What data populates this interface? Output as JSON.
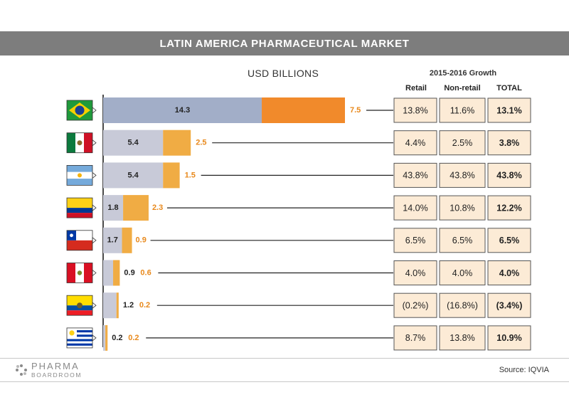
{
  "header": {
    "title": "LATIN AMERICA PHARMACEUTICAL MARKET"
  },
  "subtitle": "USD BILLIONS",
  "growth": {
    "title": "2015-2016 Growth",
    "columns": {
      "retail": "Retail",
      "nonretail": "Non-retail",
      "total": "TOTAL"
    }
  },
  "footer": {
    "logo_line1": "PHARMA",
    "logo_line2": "BOARDROOM",
    "source": "Source: IQVIA"
  },
  "colors": {
    "retail_highlight": "#a2aec8",
    "nonretail_highlight": "#f18a2b",
    "retail": "#c8cad8",
    "nonretail": "#f0ac44",
    "cell_bg": "#fcebd6",
    "label_dark": "#222222",
    "label_orange": "#e8891c"
  },
  "chart_data": {
    "type": "bar",
    "stacked": true,
    "orientation": "horizontal",
    "unit": "USD BILLIONS",
    "categories": [
      "brazil-flag-icon",
      "mexico-flag-icon",
      "argentina-flag-icon",
      "colombia-flag-icon",
      "chile-flag-icon",
      "peru-flag-icon",
      "ecuador-flag-icon",
      "uruguay-flag-icon"
    ],
    "series": [
      {
        "values": [
          14.3,
          5.4,
          5.4,
          1.8,
          1.7,
          0.9,
          1.2,
          0.2
        ]
      },
      {
        "values": [
          7.5,
          2.5,
          1.5,
          2.3,
          0.9,
          0.6,
          0.2,
          0.2
        ]
      }
    ],
    "value_labels": [
      [
        "14.3",
        "5.4",
        "5.4",
        "1.8",
        "1.7",
        "0.9",
        "1.2",
        "0.2"
      ],
      [
        "7.5",
        "2.5",
        "1.5",
        "2.3",
        "0.9",
        "0.6",
        "0.2",
        "0.2"
      ]
    ],
    "growth_table": {
      "retail": [
        "13.8%",
        "4.4%",
        "43.8%",
        "14.0%",
        "6.5%",
        "4.0%",
        "(0.2%)",
        "8.7%"
      ],
      "nonretail": [
        "11.6%",
        "2.5%",
        "43.8%",
        "10.8%",
        "6.5%",
        "4.0%",
        "(16.8%)",
        "13.8%"
      ],
      "total": [
        "13.1%",
        "3.8%",
        "43.8%",
        "12.2%",
        "6.5%",
        "4.0%",
        "(3.4%)",
        "10.9%"
      ]
    }
  }
}
